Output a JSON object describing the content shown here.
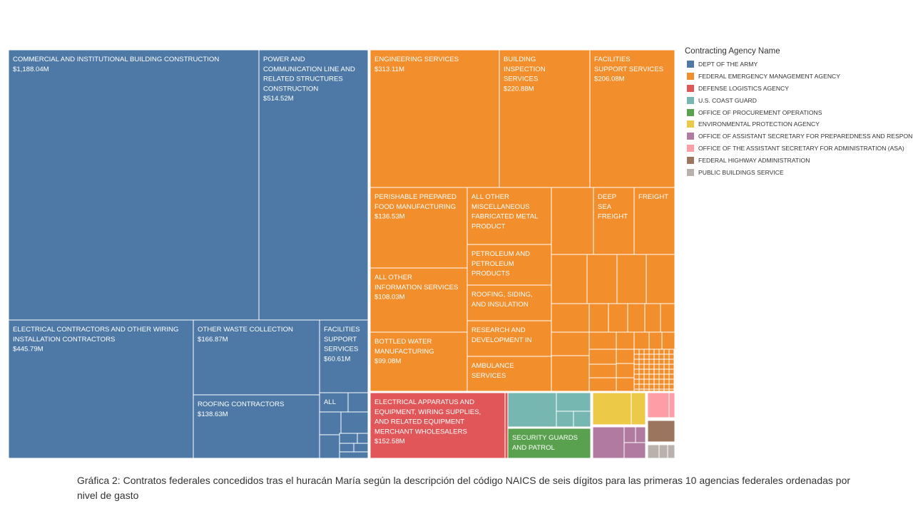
{
  "legend": {
    "title": "Contracting Agency Name",
    "items": [
      {
        "name": "DEPT OF THE ARMY",
        "color": "#4e79a7"
      },
      {
        "name": "FEDERAL EMERGENCY MANAGEMENT AGENCY",
        "color": "#f28e2b"
      },
      {
        "name": "DEFENSE LOGISTICS AGENCY",
        "color": "#e15759"
      },
      {
        "name": "U.S. COAST GUARD",
        "color": "#76b7b2"
      },
      {
        "name": "OFFICE OF PROCUREMENT OPERATIONS",
        "color": "#59a14f"
      },
      {
        "name": "ENVIRONMENTAL PROTECTION AGENCY",
        "color": "#edc948"
      },
      {
        "name": "OFFICE OF ASSISTANT SECRETARY FOR PREPAREDNESS AND RESPONSE",
        "color": "#b07aa1"
      },
      {
        "name": "OFFICE OF THE ASSISTANT SECRETARY FOR ADMINISTRATION (ASA)",
        "color": "#ff9da7"
      },
      {
        "name": "FEDERAL HIGHWAY ADMINISTRATION",
        "color": "#9c755f"
      },
      {
        "name": "PUBLIC BUILDINGS SERVICE",
        "color": "#bab0ac"
      }
    ]
  },
  "caption": "Gráfica 2: Contratos federales concedidos tras el huracán María según la descripción del código NAICS de seis dígitos para las primeras 10 agencias federales ordenadas por nivel de gasto",
  "chart_data": {
    "type": "treemap",
    "color_legend_title": "Contracting Agency Name",
    "labeled_tiles": [
      {
        "agency": "DEPT OF THE ARMY",
        "label": "COMMERCIAL AND INSTITUTIONAL BUILDING CONSTRUCTION",
        "value_text": "$1,188.04M",
        "value_musd": 1188.04
      },
      {
        "agency": "DEPT OF THE ARMY",
        "label": "POWER AND COMMUNICATION LINE AND RELATED STRUCTURES CONSTRUCTION",
        "value_text": "$514.52M",
        "value_musd": 514.52
      },
      {
        "agency": "DEPT OF THE ARMY",
        "label": "ELECTRICAL CONTRACTORS AND OTHER WIRING INSTALLATION CONTRACTORS",
        "value_text": "$445.79M",
        "value_musd": 445.79
      },
      {
        "agency": "DEPT OF THE ARMY",
        "label": "OTHER WASTE COLLECTION",
        "value_text": "$166.87M",
        "value_musd": 166.87
      },
      {
        "agency": "DEPT OF THE ARMY",
        "label": "FACILITIES SUPPORT SERVICES",
        "value_text": "$60.61M",
        "value_musd": 60.61
      },
      {
        "agency": "DEPT OF THE ARMY",
        "label": "ROOFING CONTRACTORS",
        "value_text": "$138.63M",
        "value_musd": 138.63
      },
      {
        "agency": "DEPT OF THE ARMY",
        "label": "ALL",
        "value_text": "",
        "value_musd": null
      },
      {
        "agency": "FEDERAL EMERGENCY MANAGEMENT AGENCY",
        "label": "ENGINEERING SERVICES",
        "value_text": "$313.11M",
        "value_musd": 313.11
      },
      {
        "agency": "FEDERAL EMERGENCY MANAGEMENT AGENCY",
        "label": "BUILDING INSPECTION SERVICES",
        "value_text": "$220.88M",
        "value_musd": 220.88
      },
      {
        "agency": "FEDERAL EMERGENCY MANAGEMENT AGENCY",
        "label": "FACILITIES SUPPORT SERVICES",
        "value_text": "$206.08M",
        "value_musd": 206.08
      },
      {
        "agency": "FEDERAL EMERGENCY MANAGEMENT AGENCY",
        "label": "PERISHABLE PREPARED FOOD MANUFACTURING",
        "value_text": "$136.53M",
        "value_musd": 136.53
      },
      {
        "agency": "FEDERAL EMERGENCY MANAGEMENT AGENCY",
        "label": "ALL OTHER INFORMATION SERVICES",
        "value_text": "$108.03M",
        "value_musd": 108.03
      },
      {
        "agency": "FEDERAL EMERGENCY MANAGEMENT AGENCY",
        "label": "BOTTLED WATER MANUFACTURING",
        "value_text": "$99.08M",
        "value_musd": 99.08
      },
      {
        "agency": "FEDERAL EMERGENCY MANAGEMENT AGENCY",
        "label": "ALL OTHER MISCELLANEOUS FABRICATED METAL PRODUCT",
        "value_text": "",
        "value_musd": null
      },
      {
        "agency": "FEDERAL EMERGENCY MANAGEMENT AGENCY",
        "label": "PETROLEUM AND PETROLEUM PRODUCTS",
        "value_text": "",
        "value_musd": null
      },
      {
        "agency": "FEDERAL EMERGENCY MANAGEMENT AGENCY",
        "label": "ROOFING, SIDING, AND INSULATION",
        "value_text": "",
        "value_musd": null
      },
      {
        "agency": "FEDERAL EMERGENCY MANAGEMENT AGENCY",
        "label": "RESEARCH AND DEVELOPMENT IN",
        "value_text": "",
        "value_musd": null
      },
      {
        "agency": "FEDERAL EMERGENCY MANAGEMENT AGENCY",
        "label": "AMBULANCE SERVICES",
        "value_text": "",
        "value_musd": null
      },
      {
        "agency": "FEDERAL EMERGENCY MANAGEMENT AGENCY",
        "label": "DEEP SEA FREIGHT",
        "value_text": "",
        "value_musd": null
      },
      {
        "agency": "FEDERAL EMERGENCY MANAGEMENT AGENCY",
        "label": "FREIGHT",
        "value_text": "",
        "value_musd": null
      },
      {
        "agency": "DEFENSE LOGISTICS AGENCY",
        "label": "ELECTRICAL APPARATUS AND EQUIPMENT, WIRING SUPPLIES, AND RELATED EQUIPMENT MERCHANT WHOLESALERS",
        "value_text": "$152.58M",
        "value_musd": 152.58
      },
      {
        "agency": "OFFICE OF PROCUREMENT OPERATIONS",
        "label": "SECURITY GUARDS AND PATROL",
        "value_text": "",
        "value_musd": null
      }
    ]
  }
}
